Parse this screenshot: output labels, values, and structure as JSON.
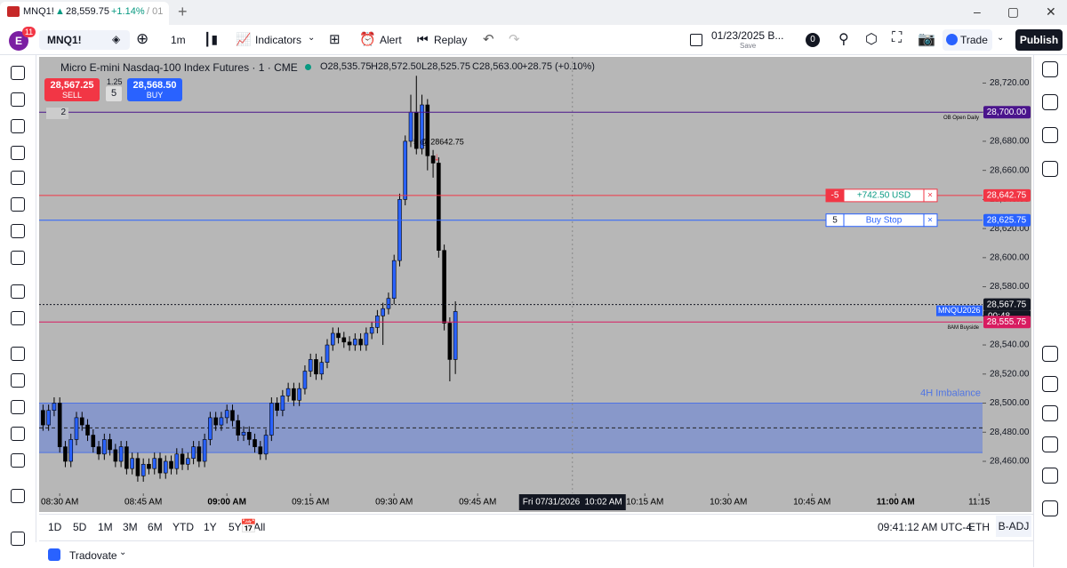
{
  "tab": {
    "title": "MNQ1!",
    "price": "28,559.75",
    "change": "+1.14%",
    "rest": "/ 01"
  },
  "toolbar": {
    "avatar": "E",
    "badge": "11",
    "symbol": "MNQ1!",
    "interval": "1m",
    "indicators": "Indicators",
    "alert": "Alert",
    "replay": "Replay",
    "layout": "01/23/2025 B...",
    "save": "Save",
    "count": "0",
    "trade": "Trade",
    "publish": "Publish"
  },
  "chart_data": {
    "type": "candlestick",
    "title": "Micro E-mini Nasdaq-100 Index Futures · 1 · CME",
    "ohlc_legend": [
      "O28,535.75",
      "H28,572.50",
      "L28,525.75",
      "C28,563.00",
      "+28.75 (+0.10%)"
    ],
    "order_panel": {
      "sell_price": "28,567.25",
      "sell": "SELL",
      "spread": "1.25",
      "qty": "5",
      "buy_price": "28,568.50",
      "buy": "BUY"
    },
    "indicator_count": "2",
    "x": [
      507,
      508,
      509,
      510,
      511,
      512,
      513,
      514,
      515,
      516,
      517,
      518,
      519,
      520,
      521,
      522,
      523,
      524,
      525,
      526,
      527,
      528,
      529,
      530,
      531,
      532,
      533,
      534,
      535,
      536,
      537,
      538,
      539,
      540,
      541,
      542,
      543,
      544,
      545,
      546,
      547,
      548,
      549,
      550,
      551,
      552,
      553,
      554,
      555,
      556,
      557,
      558,
      559,
      560,
      561,
      562,
      563,
      564,
      565,
      566,
      567,
      568,
      569,
      570,
      571,
      572,
      573,
      574,
      575,
      576,
      577,
      578,
      579,
      580,
      581
    ],
    "open": [
      28495,
      28485,
      28495,
      28500,
      28470,
      28460,
      28475,
      28490,
      28485,
      28478,
      28470,
      28465,
      28475,
      28468,
      28460,
      28470,
      28455,
      28462,
      28450,
      28458,
      28455,
      28462,
      28452,
      28460,
      28455,
      28465,
      28458,
      28462,
      28470,
      28460,
      28475,
      28490,
      28485,
      28490,
      28495,
      28488,
      28478,
      28480,
      28475,
      28470,
      28465,
      28478,
      28500,
      28495,
      28505,
      28510,
      28502,
      28510,
      28522,
      28530,
      28520,
      28528,
      28540,
      28548,
      28545,
      28542,
      28540,
      28544,
      28540,
      28548,
      28552,
      28560,
      28565,
      28572,
      28598,
      28640,
      28680,
      28700,
      28675,
      28705,
      28670,
      28665,
      28605,
      28555,
      28530
    ],
    "high": [
      28499,
      28499,
      28504,
      28504,
      28474,
      28479,
      28494,
      28494,
      28489,
      28482,
      28474,
      28479,
      28479,
      28472,
      28474,
      28474,
      28466,
      28466,
      28462,
      28462,
      28466,
      28466,
      28464,
      28464,
      28469,
      28469,
      28466,
      28474,
      28474,
      28479,
      28494,
      28494,
      28494,
      28499,
      28499,
      28492,
      28484,
      28484,
      28479,
      28474,
      28482,
      28504,
      28504,
      28509,
      28514,
      28514,
      28514,
      28526,
      28534,
      28534,
      28532,
      28544,
      28552,
      28552,
      28549,
      28546,
      28548,
      28548,
      28552,
      28556,
      28564,
      28569,
      28576,
      28602,
      28644,
      28684,
      28712,
      28725,
      28712,
      28709,
      28674,
      28669,
      28609,
      28559,
      28570
    ],
    "low": [
      28481,
      28481,
      28491,
      28466,
      28456,
      28456,
      28471,
      28481,
      28474,
      28466,
      28461,
      28461,
      28464,
      28456,
      28456,
      28451,
      28451,
      28446,
      28446,
      28451,
      28451,
      28448,
      28448,
      28451,
      28451,
      28454,
      28454,
      28458,
      28456,
      28456,
      28471,
      28481,
      28481,
      28486,
      28484,
      28474,
      28474,
      28471,
      28466,
      28461,
      28461,
      28474,
      28491,
      28491,
      28501,
      28498,
      28498,
      28506,
      28518,
      28516,
      28516,
      28524,
      28536,
      28541,
      28538,
      28536,
      28536,
      28536,
      28536,
      28544,
      28548,
      28540,
      28561,
      28568,
      28594,
      28636,
      28676,
      28671,
      28671,
      28660,
      28655,
      28600,
      28550,
      28515,
      28520
    ],
    "close": [
      28485,
      28495,
      28500,
      28470,
      28460,
      28475,
      28490,
      28485,
      28478,
      28470,
      28465,
      28475,
      28468,
      28460,
      28470,
      28455,
      28462,
      28450,
      28458,
      28455,
      28462,
      28452,
      28460,
      28455,
      28465,
      28458,
      28462,
      28470,
      28460,
      28475,
      28490,
      28485,
      28490,
      28495,
      28488,
      28478,
      28480,
      28475,
      28470,
      28465,
      28478,
      28500,
      28495,
      28505,
      28510,
      28502,
      28510,
      28522,
      28530,
      28520,
      28528,
      28540,
      28548,
      28545,
      28542,
      28540,
      28544,
      28540,
      28548,
      28552,
      28560,
      28565,
      28572,
      28598,
      28640,
      28680,
      28700,
      28675,
      28705,
      28670,
      28665,
      28605,
      28555,
      28530,
      28563
    ],
    "up_color": "#2962ff",
    "down_color": "#000000",
    "xlim": [
      506.3,
      675.6
    ],
    "xticks": [
      {
        "value": 510,
        "label": "08:30 AM"
      },
      {
        "value": 525,
        "label": "08:45 AM"
      },
      {
        "value": 540,
        "label": "09:00 AM"
      },
      {
        "value": 555,
        "label": "09:15 AM"
      },
      {
        "value": 570,
        "label": "09:30 AM"
      },
      {
        "value": 585,
        "label": "09:45 AM"
      },
      {
        "value": 615,
        "label": "10:15 AM"
      },
      {
        "value": 630,
        "label": "10:30 AM"
      },
      {
        "value": 645,
        "label": "10:45 AM"
      },
      {
        "value": 660,
        "label": "11:00 AM"
      },
      {
        "value": 675,
        "label": "11:15"
      }
    ],
    "ylim": [
      28438,
      28738
    ],
    "yticks": [
      {
        "value": 28460,
        "label": "28,460.00"
      },
      {
        "value": 28480,
        "label": "28,480.00"
      },
      {
        "value": 28500,
        "label": "28,500.00"
      },
      {
        "value": 28520,
        "label": "28,520.00"
      },
      {
        "value": 28540,
        "label": "28,540.00"
      },
      {
        "value": 28560,
        "label": "28,560.00"
      },
      {
        "value": 28580,
        "label": "28,580.00"
      },
      {
        "value": 28600,
        "label": "28,600.00"
      },
      {
        "value": 28620,
        "label": "28,620.00"
      },
      {
        "value": 28640,
        "label": "28,640.00"
      },
      {
        "value": 28660,
        "label": "28,660.00"
      },
      {
        "value": 28680,
        "label": "28,680.00"
      },
      {
        "value": 28700,
        "label": "28,700.00"
      },
      {
        "value": 28720,
        "label": "28,720.00"
      }
    ],
    "levels": [
      {
        "name": "OB Open Daily",
        "price": 28700,
        "price_label": "28,700.00",
        "color": "#4a148c"
      },
      {
        "price": 28642.75,
        "price_label": "28,642.75",
        "color": "#f23645",
        "widget": [
          "-5",
          "+742.50 USD"
        ]
      },
      {
        "price": 28625.75,
        "price_label": "28,625.75",
        "color": "#2962ff",
        "widget": [
          "5",
          "Buy Stop"
        ]
      },
      {
        "price": 28567.75,
        "price_label": "28,567.75",
        "color": "#131722",
        "dotted": true
      },
      {
        "name": "8AM Buyside",
        "price": 28555.75,
        "price_label": "28,555.75",
        "color": "#d81b60"
      }
    ],
    "symbol_tag": "MNQU2026",
    "countdown": "00:48",
    "zone": {
      "name": "4H Imbalance",
      "top": 28500,
      "bottom": 28466,
      "mid": 28483,
      "color": "#4f74e3"
    },
    "executions": [
      {
        "x": 577,
        "price": 28642.75,
        "label": "5 @ 28642.75"
      }
    ],
    "crosshair": {
      "x": 602,
      "day": "Fri 07/31/2026",
      "time": "10:02 AM"
    }
  },
  "bottom_bar": {
    "ranges": [
      "1D",
      "5D",
      "1M",
      "3M",
      "6M",
      "YTD",
      "1Y",
      "5Y",
      "All"
    ],
    "clock": "09:41:12 AM UTC-4",
    "session": "ETH",
    "adjust": "B-ADJ"
  },
  "footer": {
    "broker": "Tradovate"
  }
}
